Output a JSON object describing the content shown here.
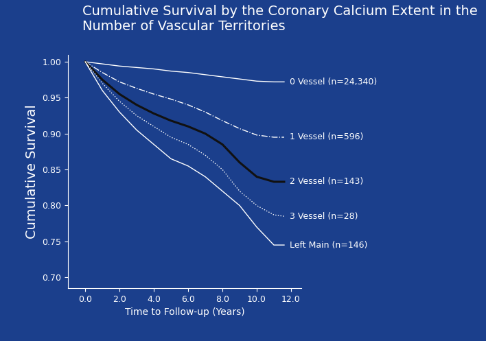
{
  "chart_data": {
    "type": "line",
    "title": "Cumulative Survival by the Coronary Calcium Extent in the\nNumber of Vascular Territories",
    "x_label": "Time to Follow-up (Years)",
    "y_label": "Cumulative Survival",
    "x": [
      0,
      1,
      2,
      3,
      4,
      5,
      6,
      7,
      8,
      9,
      10,
      11,
      11.6
    ],
    "series": [
      {
        "name": "0 Vessel (n=24,340)",
        "color": "#ffffff",
        "line_style": "solid",
        "values": [
          1.0,
          0.997,
          0.994,
          0.992,
          0.99,
          0.987,
          0.985,
          0.982,
          0.979,
          0.976,
          0.973,
          0.972,
          0.972
        ]
      },
      {
        "name": "1 Vessel (n=596)",
        "color": "#ffffff",
        "line_style": "dashdot",
        "values": [
          1.0,
          0.985,
          0.972,
          0.963,
          0.955,
          0.948,
          0.94,
          0.93,
          0.918,
          0.907,
          0.898,
          0.895,
          0.895
        ]
      },
      {
        "name": "2 Vessel (n=143)",
        "color": "#111111",
        "line_style": "solid",
        "values": [
          1.0,
          0.975,
          0.955,
          0.94,
          0.928,
          0.918,
          0.91,
          0.9,
          0.885,
          0.86,
          0.84,
          0.833,
          0.833
        ]
      },
      {
        "name": "3 Vessel (n=28)",
        "color": "#ffffff",
        "line_style": "dotted",
        "values": [
          1.0,
          0.97,
          0.945,
          0.925,
          0.91,
          0.895,
          0.885,
          0.87,
          0.85,
          0.82,
          0.8,
          0.787,
          0.785
        ]
      },
      {
        "name": "Left Main (n=146)",
        "color": "#ffffff",
        "line_style": "solid",
        "values": [
          1.0,
          0.96,
          0.93,
          0.905,
          0.885,
          0.865,
          0.855,
          0.84,
          0.82,
          0.8,
          0.77,
          0.745,
          0.745
        ]
      }
    ],
    "xlim": [
      -1.0,
      12.6
    ],
    "ylim": [
      0.685,
      1.01
    ],
    "xticks": [
      {
        "value": 0,
        "label": "0.0"
      },
      {
        "value": 2,
        "label": "2.0"
      },
      {
        "value": 4,
        "label": "4.0"
      },
      {
        "value": 6,
        "label": "6.0"
      },
      {
        "value": 8,
        "label": "8.0"
      },
      {
        "value": 10,
        "label": "10.0"
      },
      {
        "value": 12,
        "label": "12.0"
      }
    ],
    "yticks": [
      {
        "value": 0.7,
        "label": "0.70"
      },
      {
        "value": 0.75,
        "label": "0.75"
      },
      {
        "value": 0.8,
        "label": "0.80"
      },
      {
        "value": 0.85,
        "label": "0.85"
      },
      {
        "value": 0.9,
        "label": "0.90"
      },
      {
        "value": 0.95,
        "label": "0.95"
      },
      {
        "value": 1.0,
        "label": "1.00"
      }
    ],
    "grid": false
  }
}
